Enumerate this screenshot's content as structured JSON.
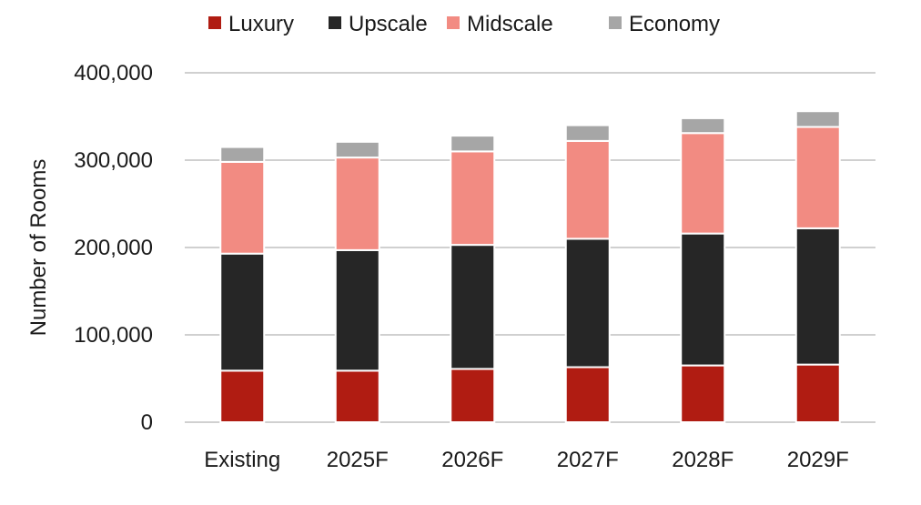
{
  "chart_data": {
    "type": "bar",
    "stacked": true,
    "categories": [
      "Existing",
      "2025F",
      "2026F",
      "2027F",
      "2028F",
      "2029F"
    ],
    "series": [
      {
        "name": "Luxury",
        "color": "#b01c12",
        "values": [
          59000,
          59000,
          61000,
          63000,
          65000,
          66000
        ]
      },
      {
        "name": "Upscale",
        "color": "#262626",
        "values": [
          134000,
          138000,
          142000,
          147000,
          151000,
          156000
        ]
      },
      {
        "name": "Midscale",
        "color": "#f28b82",
        "values": [
          105000,
          106000,
          107000,
          112000,
          115000,
          116000
        ]
      },
      {
        "name": "Economy",
        "color": "#a6a6a6",
        "values": [
          17000,
          18000,
          18000,
          18000,
          17000,
          18000
        ]
      }
    ],
    "ylabel": "Number of Rooms",
    "xlabel": "",
    "ylim": [
      0,
      400000
    ],
    "yticks": [
      "0",
      "100,000",
      "200,000",
      "300,000",
      "400,000"
    ],
    "grid": true,
    "legend_position": "top"
  }
}
